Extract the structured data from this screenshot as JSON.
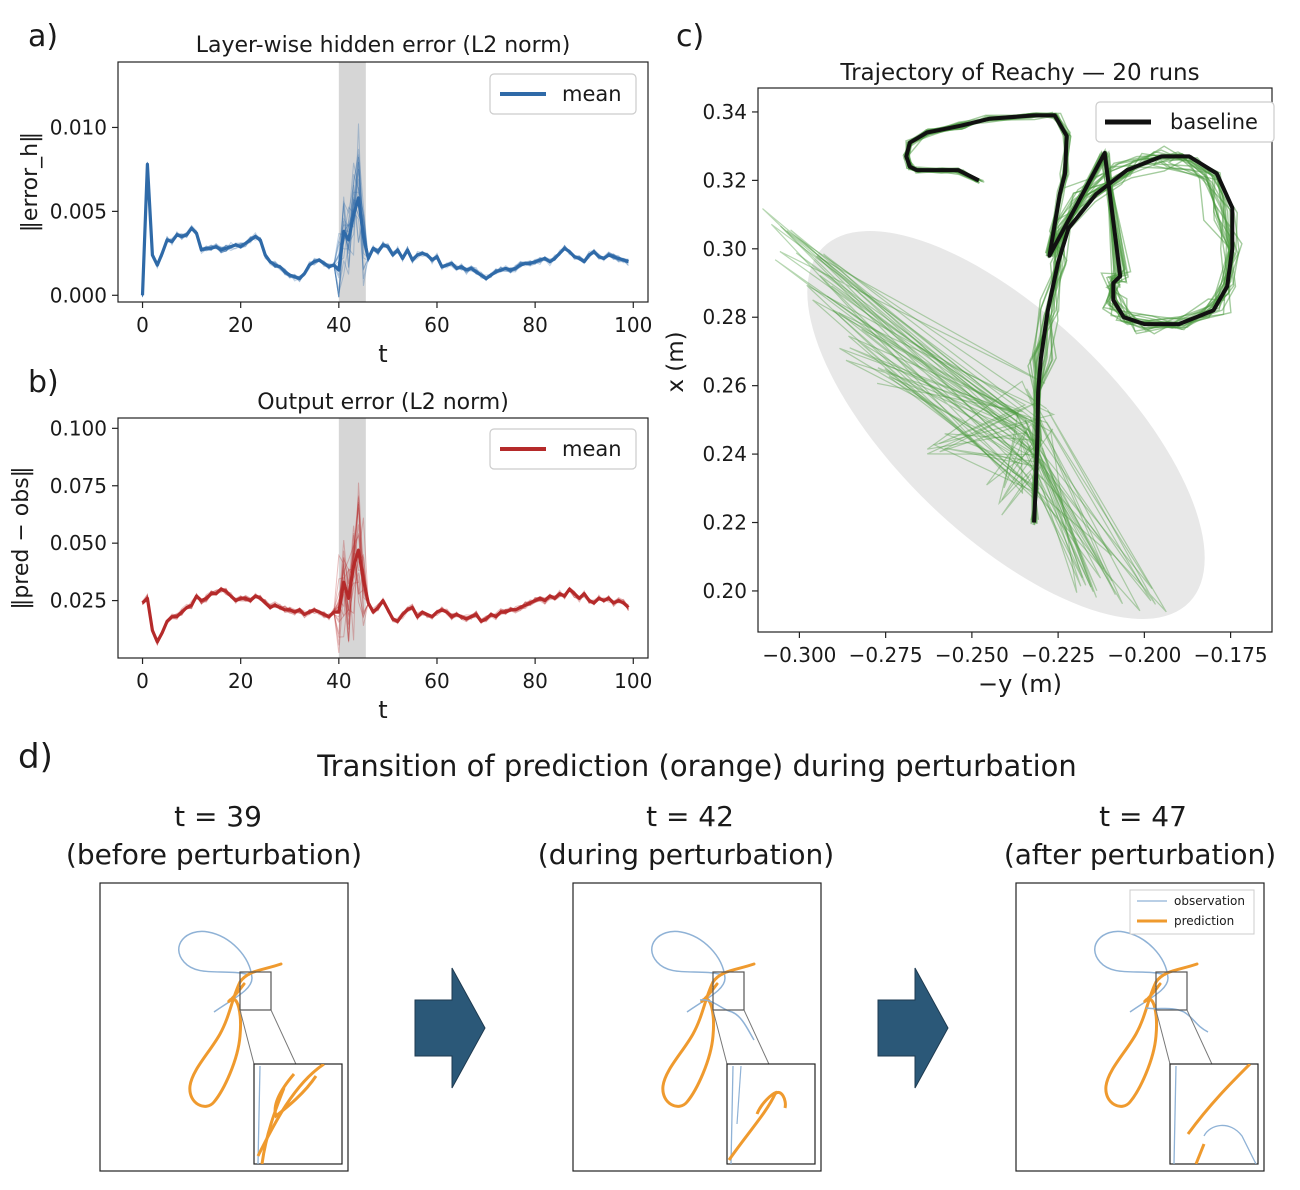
{
  "colors": {
    "blue": "#2f6aa8",
    "red": "#b52a2a",
    "green": "#4a9a3e",
    "black": "#111111",
    "orange": "#ef9a2e",
    "obs_blue": "#8fb2d6",
    "shade": "#cfcfcf",
    "arrow": "#2b5878"
  },
  "chart_data": [
    {
      "panel_label": "a)",
      "type": "line",
      "title": "Layer-wise hidden error (L2 norm)",
      "xlabel": "t",
      "ylabel": "‖error_h‖",
      "xlim": [
        -5,
        103
      ],
      "ylim": [
        -0.0004,
        0.0139
      ],
      "xticks": [
        0,
        20,
        40,
        60,
        80,
        100
      ],
      "yticks": [
        0.0,
        0.005,
        0.01
      ],
      "ytick_labels": [
        "0.000",
        "0.005",
        "0.010"
      ],
      "xtick_labels": [
        "0",
        "20",
        "40",
        "60",
        "80",
        "100"
      ],
      "shaded_region": [
        40,
        45.5
      ],
      "legend": [
        "mean"
      ],
      "legend_position": "top-right",
      "x": [
        0,
        1,
        2,
        3,
        4,
        5,
        6,
        7,
        8,
        9,
        10,
        11,
        12,
        13,
        14,
        15,
        16,
        17,
        18,
        19,
        20,
        21,
        22,
        23,
        24,
        25,
        26,
        27,
        28,
        29,
        30,
        31,
        32,
        33,
        34,
        35,
        36,
        37,
        38,
        39,
        40,
        41,
        42,
        43,
        44,
        45,
        46,
        47,
        48,
        49,
        50,
        51,
        52,
        53,
        54,
        55,
        56,
        57,
        58,
        59,
        60,
        61,
        62,
        63,
        64,
        65,
        66,
        67,
        68,
        69,
        70,
        71,
        72,
        73,
        74,
        75,
        76,
        77,
        78,
        79,
        80,
        81,
        82,
        83,
        84,
        85,
        86,
        87,
        88,
        89,
        90,
        91,
        92,
        93,
        94,
        95,
        96,
        97,
        98,
        99
      ],
      "series": [
        {
          "name": "mean",
          "values": [
            0.0,
            0.0078,
            0.0024,
            0.0018,
            0.0025,
            0.0033,
            0.0032,
            0.0036,
            0.0035,
            0.0036,
            0.004,
            0.0037,
            0.0027,
            0.0028,
            0.0028,
            0.0029,
            0.0027,
            0.0028,
            0.0029,
            0.003,
            0.0029,
            0.0031,
            0.0033,
            0.0035,
            0.0033,
            0.0024,
            0.002,
            0.0018,
            0.0017,
            0.0014,
            0.0012,
            0.0011,
            0.001,
            0.0013,
            0.0018,
            0.002,
            0.0021,
            0.0019,
            0.0017,
            0.0018,
            0.0015,
            0.0038,
            0.0033,
            0.0048,
            0.0058,
            0.0035,
            0.0022,
            0.0028,
            0.0026,
            0.003,
            0.0029,
            0.0024,
            0.0027,
            0.0022,
            0.0027,
            0.0021,
            0.0024,
            0.0025,
            0.0024,
            0.0021,
            0.0023,
            0.0017,
            0.0018,
            0.0019,
            0.0016,
            0.0017,
            0.0015,
            0.0016,
            0.0014,
            0.0012,
            0.001,
            0.0012,
            0.0014,
            0.0015,
            0.0016,
            0.0015,
            0.0016,
            0.0018,
            0.0019,
            0.0019,
            0.002,
            0.0021,
            0.0022,
            0.002,
            0.0022,
            0.0025,
            0.0028,
            0.0026,
            0.0023,
            0.0022,
            0.002,
            0.0024,
            0.0026,
            0.0023,
            0.0022,
            0.0024,
            0.0023,
            0.0022,
            0.0021,
            0.002
          ]
        }
      ]
    },
    {
      "panel_label": "b)",
      "type": "line",
      "title": "Output error (L2 norm)",
      "xlabel": "t",
      "ylabel": "‖pred − obs‖",
      "xlim": [
        -5,
        103
      ],
      "ylim": [
        0.0,
        0.1045
      ],
      "xticks": [
        0,
        20,
        40,
        60,
        80,
        100
      ],
      "yticks": [
        0.025,
        0.05,
        0.075,
        0.1
      ],
      "ytick_labels": [
        "0.025",
        "0.050",
        "0.075",
        "0.100"
      ],
      "xtick_labels": [
        "0",
        "20",
        "40",
        "60",
        "80",
        "100"
      ],
      "shaded_region": [
        40,
        45.5
      ],
      "legend": [
        "mean"
      ],
      "legend_position": "top-right",
      "x": [
        0,
        1,
        2,
        3,
        4,
        5,
        6,
        7,
        8,
        9,
        10,
        11,
        12,
        13,
        14,
        15,
        16,
        17,
        18,
        19,
        20,
        21,
        22,
        23,
        24,
        25,
        26,
        27,
        28,
        29,
        30,
        31,
        32,
        33,
        34,
        35,
        36,
        37,
        38,
        39,
        40,
        41,
        42,
        43,
        44,
        45,
        46,
        47,
        48,
        49,
        50,
        51,
        52,
        53,
        54,
        55,
        56,
        57,
        58,
        59,
        60,
        61,
        62,
        63,
        64,
        65,
        66,
        67,
        68,
        69,
        70,
        71,
        72,
        73,
        74,
        75,
        76,
        77,
        78,
        79,
        80,
        81,
        82,
        83,
        84,
        85,
        86,
        87,
        88,
        89,
        90,
        91,
        92,
        93,
        94,
        95,
        96,
        97,
        98,
        99
      ],
      "series": [
        {
          "name": "mean",
          "values": [
            0.024,
            0.026,
            0.012,
            0.007,
            0.011,
            0.016,
            0.018,
            0.018,
            0.02,
            0.022,
            0.023,
            0.027,
            0.025,
            0.026,
            0.028,
            0.028,
            0.03,
            0.029,
            0.027,
            0.025,
            0.026,
            0.026,
            0.025,
            0.027,
            0.026,
            0.024,
            0.022,
            0.023,
            0.022,
            0.021,
            0.021,
            0.02,
            0.021,
            0.019,
            0.02,
            0.021,
            0.02,
            0.019,
            0.018,
            0.02,
            0.02,
            0.033,
            0.026,
            0.04,
            0.047,
            0.034,
            0.024,
            0.02,
            0.022,
            0.025,
            0.021,
            0.017,
            0.016,
            0.019,
            0.021,
            0.022,
            0.018,
            0.02,
            0.019,
            0.018,
            0.02,
            0.021,
            0.02,
            0.018,
            0.019,
            0.018,
            0.017,
            0.018,
            0.019,
            0.016,
            0.017,
            0.019,
            0.018,
            0.02,
            0.02,
            0.021,
            0.021,
            0.022,
            0.023,
            0.024,
            0.025,
            0.026,
            0.025,
            0.027,
            0.026,
            0.028,
            0.027,
            0.03,
            0.028,
            0.026,
            0.028,
            0.025,
            0.024,
            0.026,
            0.025,
            0.026,
            0.024,
            0.025,
            0.024,
            0.022
          ]
        }
      ]
    },
    {
      "panel_label": "c)",
      "type": "line",
      "title": "Trajectory of Reachy — 20 runs",
      "xlabel": "−y (m)",
      "ylabel": "x (m)",
      "xlim": [
        -0.312,
        -0.163
      ],
      "ylim": [
        0.188,
        0.347
      ],
      "xticks": [
        -0.3,
        -0.275,
        -0.25,
        -0.225,
        -0.2,
        -0.175
      ],
      "xtick_labels": [
        "−0.300",
        "−0.275",
        "−0.250",
        "−0.225",
        "−0.200",
        "−0.175"
      ],
      "yticks": [
        0.2,
        0.22,
        0.24,
        0.26,
        0.28,
        0.3,
        0.32,
        0.34
      ],
      "ytick_labels": [
        "0.20",
        "0.22",
        "0.24",
        "0.26",
        "0.28",
        "0.30",
        "0.32",
        "0.34"
      ],
      "legend": [
        "baseline"
      ],
      "legend_position": "top-right",
      "series": [
        {
          "name": "baseline",
          "points": [
            [
              -0.232,
              0.22
            ],
            [
              -0.2315,
              0.23
            ],
            [
              -0.231,
              0.245
            ],
            [
              -0.2308,
              0.258
            ],
            [
              -0.23,
              0.268
            ],
            [
              -0.228,
              0.282
            ],
            [
              -0.225,
              0.296
            ],
            [
              -0.222,
              0.306
            ],
            [
              -0.214,
              0.316
            ],
            [
              -0.205,
              0.323
            ],
            [
              -0.195,
              0.327
            ],
            [
              -0.187,
              0.327
            ],
            [
              -0.179,
              0.322
            ],
            [
              -0.1745,
              0.312
            ],
            [
              -0.1745,
              0.3
            ],
            [
              -0.176,
              0.289
            ],
            [
              -0.18,
              0.282
            ],
            [
              -0.19,
              0.278
            ],
            [
              -0.2,
              0.278
            ],
            [
              -0.206,
              0.28
            ],
            [
              -0.209,
              0.285
            ],
            [
              -0.209,
              0.29
            ],
            [
              -0.207,
              0.292
            ],
            [
              -0.2115,
              0.328
            ],
            [
              -0.2275,
              0.298
            ],
            [
              -0.2245,
              0.316
            ],
            [
              -0.223,
              0.322
            ],
            [
              -0.2225,
              0.333
            ],
            [
              -0.226,
              0.339
            ],
            [
              -0.232,
              0.339
            ],
            [
              -0.245,
              0.338
            ],
            [
              -0.253,
              0.336
            ],
            [
              -0.263,
              0.334
            ],
            [
              -0.268,
              0.331
            ],
            [
              -0.269,
              0.327
            ],
            [
              -0.268,
              0.324
            ],
            [
              -0.266,
              0.323
            ],
            [
              -0.259,
              0.323
            ],
            [
              -0.254,
              0.323
            ],
            [
              -0.248,
              0.32
            ]
          ]
        }
      ],
      "runs_count": 20
    }
  ],
  "panel_labels": {
    "a": "a)",
    "b": "b)",
    "c": "c)",
    "d": "d)"
  },
  "panel_d": {
    "title": "Transition of prediction (orange) during perturbation",
    "snapshots": [
      {
        "t_label": "t = 39",
        "caption": "(before perturbation)"
      },
      {
        "t_label": "t = 42",
        "caption": "(during perturbation)"
      },
      {
        "t_label": "t = 47",
        "caption": "(after perturbation)"
      }
    ],
    "legend": {
      "observation": "observation",
      "prediction": "prediction"
    }
  }
}
